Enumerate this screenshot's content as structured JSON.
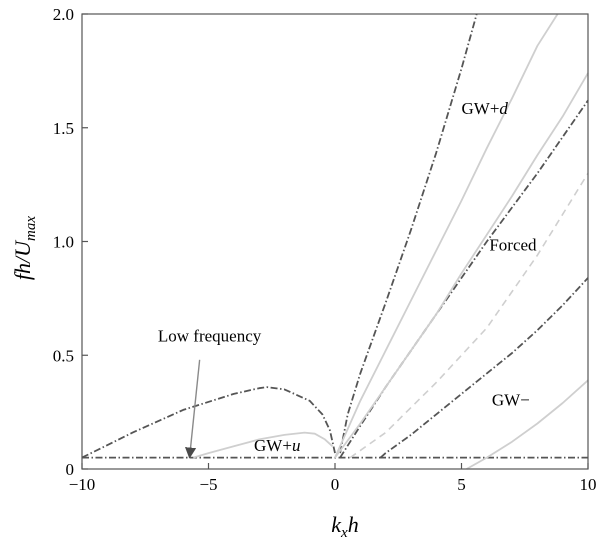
{
  "chart_data": {
    "type": "line",
    "title": "",
    "xlim": [
      -10,
      10
    ],
    "ylim": [
      0,
      2.0
    ],
    "x_ticks": [
      {
        "value": -10,
        "label": "−10"
      },
      {
        "value": -5,
        "label": "−5"
      },
      {
        "value": 0,
        "label": "0"
      },
      {
        "value": 5,
        "label": "5"
      },
      {
        "value": 10,
        "label": "10"
      }
    ],
    "y_ticks": [
      {
        "value": 0,
        "label": "0"
      },
      {
        "value": 0.5,
        "label": "0.5"
      },
      {
        "value": 1.0,
        "label": "1.0"
      },
      {
        "value": 1.5,
        "label": "1.5"
      },
      {
        "value": 2.0,
        "label": "2.0"
      }
    ],
    "xlabel": {
      "main": "k",
      "sub": "x",
      "tail": "h"
    },
    "ylabel": {
      "main": "fh/U",
      "sub": "max"
    },
    "grid": false,
    "colors": {
      "dark": "#555555",
      "light": "#cfcfcf"
    },
    "series": [
      {
        "style": "dashdot-dark",
        "x": [
          -10,
          10
        ],
        "y": [
          0.05,
          0.05
        ]
      },
      {
        "style": "dashdot-dark",
        "x": [
          -10,
          -8,
          -6,
          -4,
          -3,
          -2.7,
          -2,
          -1,
          -0.5,
          -0.2,
          0
        ],
        "y": [
          0.05,
          0.16,
          0.26,
          0.33,
          0.355,
          0.36,
          0.35,
          0.3,
          0.24,
          0.17,
          0.07
        ]
      },
      {
        "style": "dashdot-dark",
        "x": [
          0.2,
          0.5,
          1,
          2,
          3,
          4,
          5,
          5.6
        ],
        "y": [
          0.07,
          0.24,
          0.42,
          0.73,
          1.05,
          1.39,
          1.76,
          2.0
        ]
      },
      {
        "style": "dashdot-dark",
        "x": [
          0.2,
          1,
          2,
          3,
          4,
          5,
          6,
          7,
          8,
          9,
          10
        ],
        "y": [
          0.05,
          0.19,
          0.36,
          0.52,
          0.68,
          0.84,
          1.0,
          1.15,
          1.3,
          1.46,
          1.62
        ]
      },
      {
        "style": "dashdot-dark",
        "x": [
          1.8,
          2,
          3,
          4,
          5,
          6,
          7,
          8,
          9,
          10
        ],
        "y": [
          0.05,
          0.07,
          0.15,
          0.24,
          0.33,
          0.42,
          0.51,
          0.61,
          0.72,
          0.84
        ]
      },
      {
        "style": "solid-light",
        "x": [
          -5.6,
          -5,
          -4,
          -3,
          -2,
          -1.2,
          -0.8,
          -0.4,
          -0.1
        ],
        "y": [
          0.05,
          0.07,
          0.1,
          0.13,
          0.15,
          0.16,
          0.155,
          0.13,
          0.1
        ]
      },
      {
        "style": "solid-light",
        "x": [
          0,
          1,
          2,
          3,
          4,
          5,
          6,
          7,
          8,
          8.8
        ],
        "y": [
          0.05,
          0.3,
          0.52,
          0.74,
          0.96,
          1.18,
          1.41,
          1.63,
          1.86,
          2.0
        ]
      },
      {
        "style": "solid-light",
        "x": [
          0,
          1,
          2,
          3,
          4,
          5,
          6,
          7,
          8,
          9,
          10
        ],
        "y": [
          0.05,
          0.2,
          0.36,
          0.52,
          0.68,
          0.86,
          1.03,
          1.2,
          1.38,
          1.55,
          1.74
        ]
      },
      {
        "style": "dashed-light",
        "x": [
          0.6,
          2,
          4,
          6,
          8,
          10
        ],
        "y": [
          0.05,
          0.16,
          0.38,
          0.62,
          0.94,
          1.3
        ]
      },
      {
        "style": "solid-light",
        "x": [
          5.2,
          6,
          7,
          8,
          9,
          10
        ],
        "y": [
          0.0,
          0.05,
          0.12,
          0.2,
          0.29,
          0.39
        ]
      }
    ],
    "annotations": [
      {
        "text_main": "GW+",
        "text_italic": "d",
        "x": 5.0,
        "y": 1.56
      },
      {
        "text_main": "Forced",
        "text_italic": "",
        "x": 6.1,
        "y": 0.96
      },
      {
        "text_main": "GW+",
        "text_italic": "u",
        "x": -3.2,
        "y": 0.08
      },
      {
        "text_main": "GW−",
        "text_italic": "",
        "x": 6.2,
        "y": 0.28
      },
      {
        "text_main": "Low frequency",
        "text_italic": "",
        "x": -7.0,
        "y": 0.56
      }
    ],
    "arrow": {
      "from": [
        -5.35,
        0.48
      ],
      "to": [
        -5.75,
        0.05
      ]
    }
  }
}
